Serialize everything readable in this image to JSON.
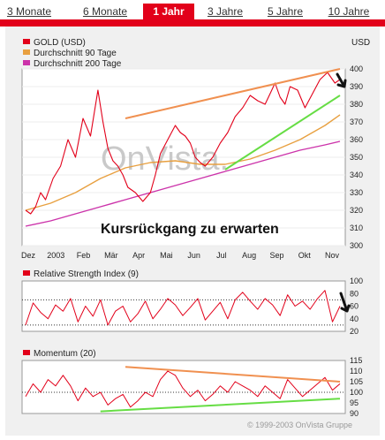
{
  "tabs": [
    {
      "label": "3 Monate",
      "active": false
    },
    {
      "label": "6 Monate",
      "active": false
    },
    {
      "label": "1 Jahr",
      "active": true
    },
    {
      "label": "3 Jahre",
      "active": false
    },
    {
      "label": "5 Jahre",
      "active": false
    },
    {
      "label": "10 Jahre",
      "active": false
    }
  ],
  "colors": {
    "accent": "#e2001a",
    "price": "#e2001a",
    "ma90": "#e8a040",
    "ma200": "#cc33aa",
    "trend_up": "#66dd44",
    "trend_resist": "#f09050"
  },
  "watermark": "OnVista.",
  "annotation": "Kursrückgang zu erwarten",
  "copyright": "© 1999-2003 OnVista Gruppe",
  "chart_data": [
    {
      "type": "line",
      "unit": "USD",
      "x_ticks": [
        "Dez",
        "2003",
        "Feb",
        "Mär",
        "Apr",
        "Mai",
        "Jun",
        "Jul",
        "Aug",
        "Sep",
        "Okt",
        "Nov"
      ],
      "ylim": [
        300,
        400
      ],
      "y_ticks": [
        300,
        310,
        320,
        330,
        340,
        350,
        360,
        370,
        380,
        390,
        400
      ],
      "legend": [
        "GOLD (USD)",
        "Durchschnitt 90 Tage",
        "Durchschnitt 200 Tage"
      ],
      "series": [
        {
          "name": "GOLD (USD)",
          "x": [
            0,
            4,
            8,
            12,
            16,
            22,
            28,
            34,
            40,
            46,
            52,
            58,
            62,
            66,
            70,
            74,
            78,
            82,
            88,
            94,
            100,
            104,
            108,
            114,
            120,
            124,
            128,
            132,
            136,
            140,
            144,
            150,
            156,
            162,
            168,
            174,
            180,
            186,
            192,
            196,
            200,
            204,
            208,
            212,
            218,
            224,
            230,
            236,
            242,
            248,
            252
          ],
          "values": [
            320,
            318,
            322,
            330,
            326,
            338,
            345,
            360,
            350,
            372,
            362,
            388,
            370,
            355,
            348,
            345,
            340,
            333,
            330,
            325,
            330,
            340,
            352,
            360,
            368,
            364,
            362,
            358,
            350,
            347,
            345,
            350,
            358,
            364,
            373,
            378,
            385,
            382,
            380,
            386,
            392,
            384,
            380,
            390,
            388,
            378,
            386,
            394,
            398,
            392,
            394
          ]
        },
        {
          "name": "Durchschnitt 90 Tage",
          "x": [
            0,
            20,
            40,
            60,
            80,
            100,
            120,
            140,
            160,
            180,
            200,
            220,
            240,
            252
          ],
          "values": [
            320,
            324,
            330,
            338,
            344,
            347,
            348,
            346,
            346,
            349,
            354,
            360,
            368,
            374
          ]
        },
        {
          "name": "Durchschnitt 200 Tage",
          "x": [
            0,
            20,
            40,
            60,
            80,
            100,
            120,
            140,
            160,
            180,
            200,
            220,
            240,
            252
          ],
          "values": [
            311,
            314,
            318,
            322,
            326,
            330,
            334,
            338,
            342,
            346,
            350,
            354,
            357,
            359
          ]
        }
      ],
      "trendlines": [
        {
          "from": [
            80,
            372
          ],
          "to": [
            252,
            400
          ]
        },
        {
          "from": [
            160,
            343
          ],
          "to": [
            252,
            385
          ]
        }
      ]
    },
    {
      "type": "line",
      "legend": [
        "Relative Strength Index (9)"
      ],
      "ylim": [
        20,
        100
      ],
      "y_ticks": [
        20,
        40,
        60,
        80,
        100
      ],
      "reference_lines": [
        30,
        70
      ],
      "series": [
        {
          "name": "Relative Strength Index (9)",
          "x": [
            0,
            6,
            12,
            18,
            24,
            30,
            36,
            42,
            48,
            54,
            60,
            66,
            72,
            78,
            84,
            90,
            96,
            102,
            108,
            114,
            120,
            126,
            132,
            138,
            144,
            150,
            156,
            162,
            168,
            174,
            180,
            186,
            192,
            198,
            204,
            210,
            216,
            222,
            228,
            234,
            240,
            246,
            252
          ],
          "values": [
            30,
            65,
            50,
            40,
            62,
            52,
            72,
            35,
            60,
            44,
            70,
            30,
            52,
            60,
            35,
            48,
            68,
            40,
            55,
            72,
            62,
            45,
            58,
            72,
            38,
            52,
            66,
            40,
            70,
            82,
            68,
            55,
            72,
            62,
            45,
            78,
            60,
            68,
            55,
            72,
            85,
            35,
            60
          ]
        }
      ]
    },
    {
      "type": "line",
      "legend": [
        "Momentum (20)"
      ],
      "ylim": [
        90,
        115
      ],
      "y_ticks": [
        90,
        95,
        100,
        105,
        110,
        115
      ],
      "reference_lines": [
        100
      ],
      "series": [
        {
          "name": "Momentum (20)",
          "x": [
            0,
            6,
            12,
            18,
            24,
            30,
            36,
            42,
            48,
            54,
            60,
            66,
            72,
            78,
            84,
            90,
            96,
            102,
            108,
            114,
            120,
            126,
            132,
            138,
            144,
            150,
            156,
            162,
            168,
            174,
            180,
            186,
            192,
            198,
            204,
            210,
            216,
            222,
            228,
            234,
            240,
            246,
            252
          ],
          "values": [
            98,
            104,
            100,
            106,
            103,
            108,
            103,
            96,
            102,
            98,
            100,
            94,
            97,
            99,
            93,
            96,
            100,
            98,
            106,
            110,
            108,
            102,
            98,
            101,
            96,
            99,
            103,
            100,
            105,
            103,
            101,
            98,
            103,
            100,
            97,
            106,
            102,
            98,
            101,
            104,
            107,
            101,
            104
          ]
        }
      ],
      "trendlines": [
        {
          "from": [
            80,
            112
          ],
          "to": [
            252,
            105
          ]
        },
        {
          "from": [
            60,
            91
          ],
          "to": [
            252,
            97
          ]
        }
      ]
    }
  ]
}
